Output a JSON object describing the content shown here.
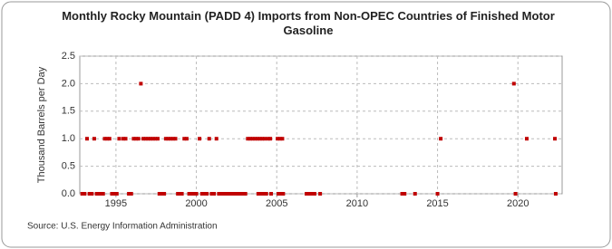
{
  "chart_data": {
    "type": "scatter",
    "title": "Monthly Rocky Mountain (PADD 4) Imports from Non-OPEC Countries of Finished Motor Gasoline",
    "y_label": "Thousand Barrels per Day",
    "source": "Source: U.S. Energy Information Administration",
    "color": "#c00000",
    "grid": true,
    "xlim": [
      1992.75,
      2022.75
    ],
    "xticks": [
      1995,
      2000,
      2005,
      2010,
      2015,
      2020
    ],
    "ylim": [
      0,
      2.5
    ],
    "yticks": [
      {
        "value": 0,
        "label": "0.0"
      },
      {
        "value": 0.5,
        "label": "0.5"
      },
      {
        "value": 1,
        "label": "1.0"
      },
      {
        "value": 1.5,
        "label": "1.5"
      },
      {
        "value": 2,
        "label": "2.0"
      },
      {
        "value": 2.5,
        "label": "2.5"
      }
    ],
    "x": [
      1993.2,
      1993.65,
      1994.3,
      1994.45,
      1994.6,
      1995.2,
      1995.45,
      1995.6,
      1996.1,
      1996.25,
      1996.4,
      1996.7,
      1996.85,
      1997.0,
      1997.15,
      1997.3,
      1997.45,
      1997.6,
      1998.1,
      1998.25,
      1998.4,
      1998.55,
      1998.7,
      1999.25,
      1999.4,
      2000.2,
      2000.8,
      2001.25,
      2003.2,
      2003.35,
      2003.5,
      2003.65,
      2003.8,
      2003.95,
      2004.1,
      2004.25,
      2004.45,
      2004.6,
      2005.05,
      2005.2,
      2005.35,
      2015.2,
      2020.55,
      2022.3,
      1996.55,
      2019.75,
      1992.9,
      1993.05,
      1993.35,
      1993.5,
      1993.8,
      1993.95,
      1994.1,
      1994.2,
      1994.75,
      1994.9,
      1995.05,
      1995.8,
      1995.95,
      1997.7,
      1997.85,
      1998.0,
      1998.85,
      1999.0,
      1999.1,
      1999.55,
      1999.7,
      1999.85,
      2000.0,
      2000.35,
      2000.5,
      2000.65,
      2000.95,
      2001.1,
      2001.4,
      2001.55,
      2001.7,
      2001.85,
      2002.0,
      2002.15,
      2002.3,
      2002.45,
      2002.6,
      2002.75,
      2002.9,
      2003.05,
      2003.85,
      2004.0,
      2004.15,
      2004.35,
      2004.65,
      2005.1,
      2005.25,
      2005.4,
      2006.85,
      2007.0,
      2007.15,
      2007.35,
      2007.7,
      2012.8,
      2012.95,
      2013.6,
      2015.0,
      2019.85,
      2022.35
    ],
    "values": [
      1,
      1,
      1,
      1,
      1,
      1,
      1,
      1,
      1,
      1,
      1,
      1,
      1,
      1,
      1,
      1,
      1,
      1,
      1,
      1,
      1,
      1,
      1,
      1,
      1,
      1,
      1,
      1,
      1,
      1,
      1,
      1,
      1,
      1,
      1,
      1,
      1,
      1,
      1,
      1,
      1,
      1,
      1,
      1,
      2,
      2,
      0,
      0,
      0,
      0,
      0,
      0,
      0,
      0,
      0,
      0,
      0,
      0,
      0,
      0,
      0,
      0,
      0,
      0,
      0,
      0,
      0,
      0,
      0,
      0,
      0,
      0,
      0,
      0,
      0,
      0,
      0,
      0,
      0,
      0,
      0,
      0,
      0,
      0,
      0,
      0,
      0,
      0,
      0,
      0,
      0,
      0,
      0,
      0,
      0,
      0,
      0,
      0,
      0,
      0,
      0,
      0,
      0,
      0,
      0
    ]
  }
}
